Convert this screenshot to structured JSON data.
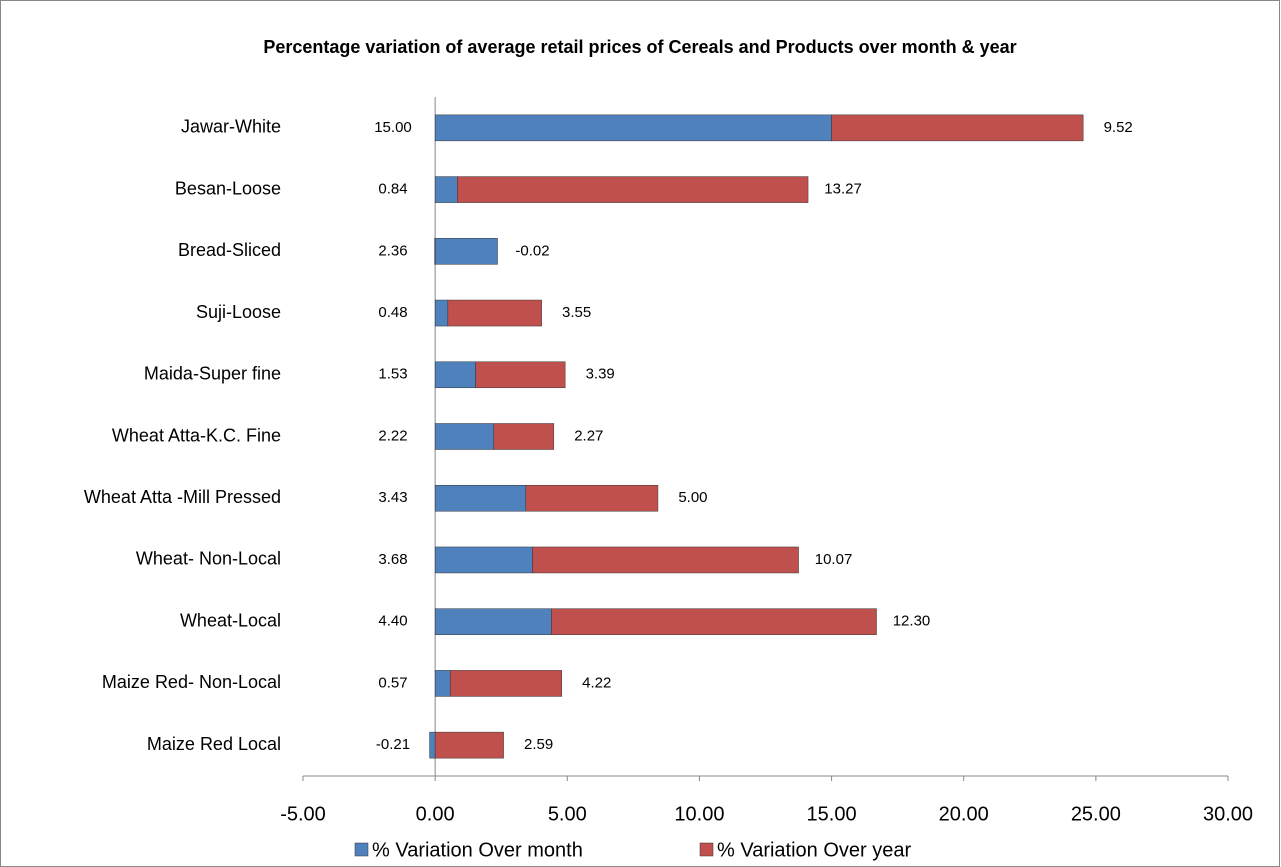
{
  "chart_data": {
    "type": "stacked-bar-horizontal",
    "title": "Percentage variation of average retail prices of Cereals and Products over month & year",
    "categories": [
      "Jawar-White",
      "Besan-Loose",
      "Bread-Sliced",
      "Suji-Loose",
      "Maida-Super fine",
      "Wheat Atta-K.C. Fine",
      "Wheat Atta -Mill Pressed",
      "Wheat- Non-Local",
      "Wheat-Local",
      "Maize Red- Non-Local",
      "Maize Red Local"
    ],
    "series": [
      {
        "name": "% Variation Over month",
        "color": "#4f81bd",
        "values": [
          15.0,
          0.84,
          2.36,
          0.48,
          1.53,
          2.22,
          3.43,
          3.68,
          4.4,
          0.57,
          -0.21
        ],
        "value_labels": [
          "15.00",
          "0.84",
          "2.36",
          "0.48",
          "1.53",
          "2.22",
          "3.43",
          "3.68",
          "4.40",
          "0.57",
          "-0.21"
        ]
      },
      {
        "name": "% Variation Over year",
        "color": "#c0504d",
        "values": [
          9.52,
          13.27,
          -0.02,
          3.55,
          3.39,
          2.27,
          5.0,
          10.07,
          12.3,
          4.22,
          2.59
        ],
        "value_labels": [
          "9.52",
          "13.27",
          "-0.02",
          "3.55",
          "3.39",
          "2.27",
          "5.00",
          "10.07",
          "12.30",
          "4.22",
          "2.59"
        ]
      }
    ],
    "xlim": [
      -5,
      30
    ],
    "xticks": [
      {
        "value": -5,
        "label": "-5.00"
      },
      {
        "value": 0,
        "label": "0.00"
      },
      {
        "value": 5,
        "label": "5.00"
      },
      {
        "value": 10,
        "label": "10.00"
      },
      {
        "value": 15,
        "label": "15.00"
      },
      {
        "value": 20,
        "label": "20.00"
      },
      {
        "value": 25,
        "label": "25.00"
      },
      {
        "value": 30,
        "label": "30.00"
      }
    ],
    "legend": "bottom"
  }
}
